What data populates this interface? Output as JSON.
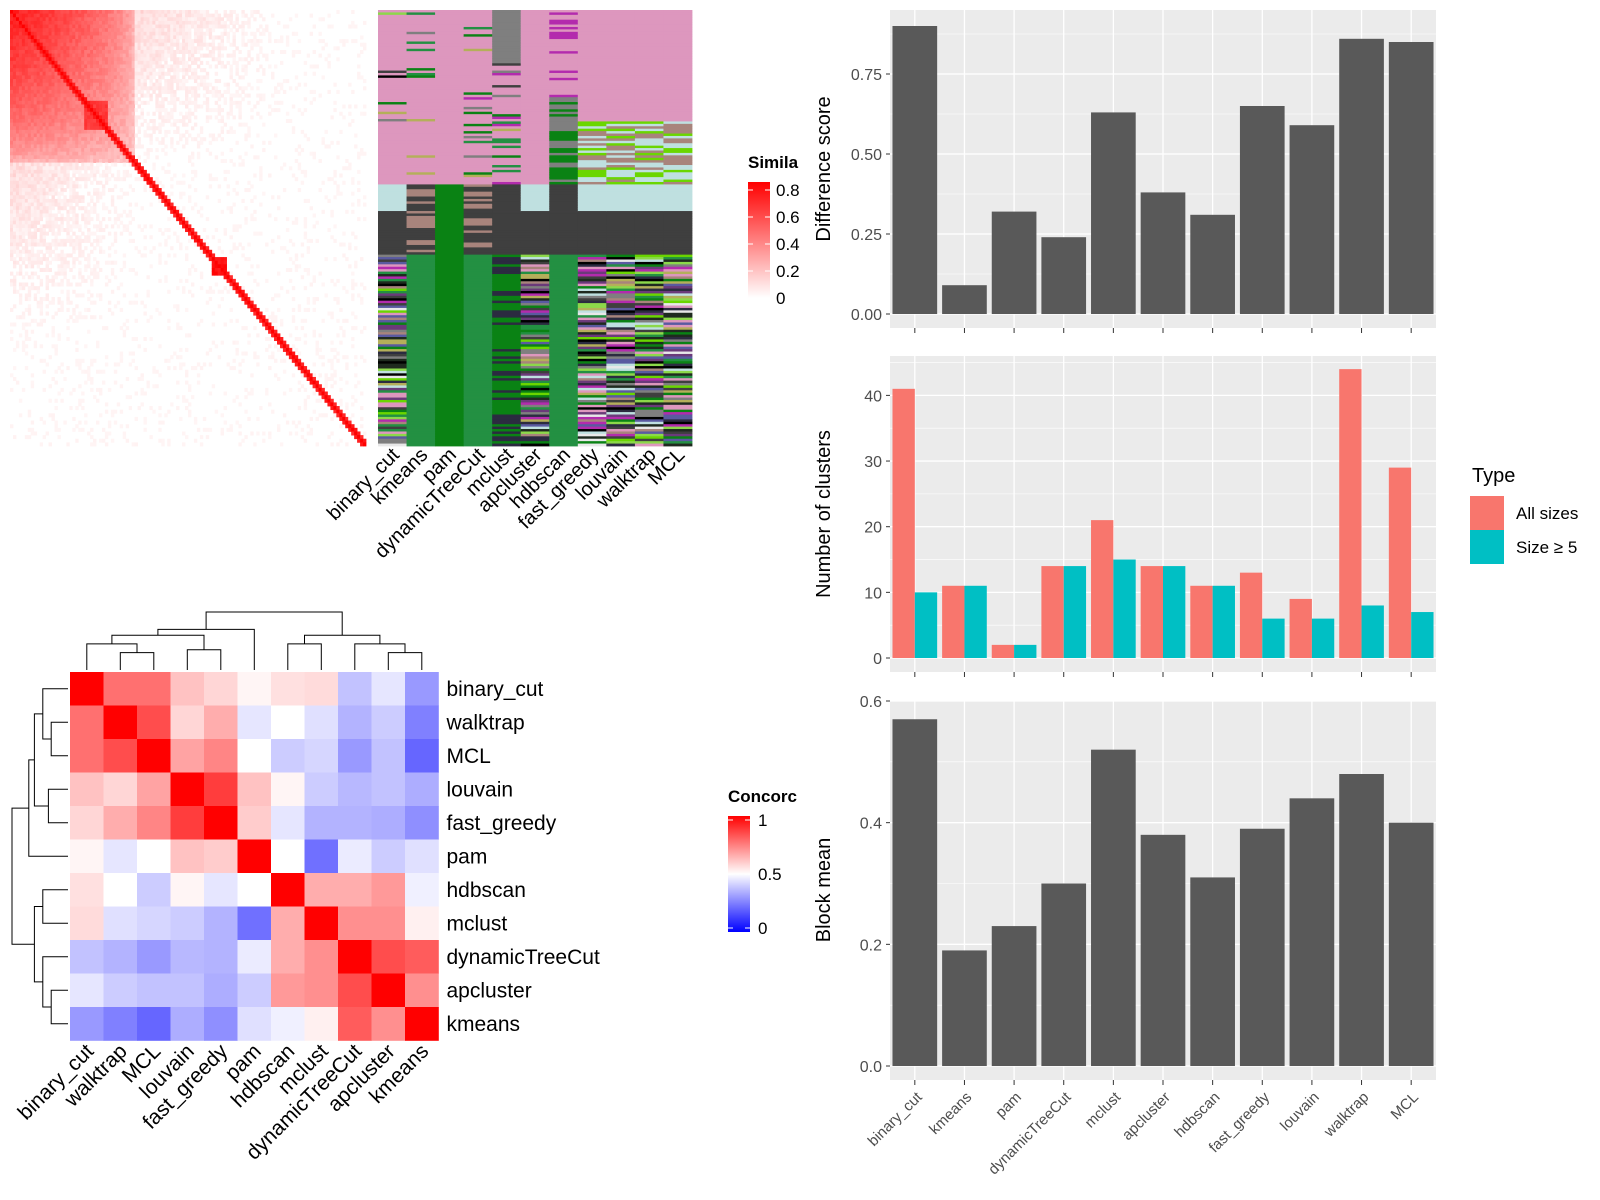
{
  "colors": {
    "panel_bg": "#ebebeb",
    "grid": "#ffffff",
    "bar": "#595959",
    "all_sizes": "#f8766d",
    "size_ge_5": "#00bfc4",
    "sim_high": "#ff0000",
    "sim_low": "#ffffff",
    "conc_high": "#ff0000",
    "conc_mid": "#ffffff",
    "conc_low": "#0000ff"
  },
  "similarity_legend": {
    "title": "Simila",
    "ticks": [
      "0.8",
      "0.6",
      "0.4",
      "0.2",
      "0"
    ]
  },
  "concordance_legend": {
    "title": "Concorc",
    "ticks": [
      "1",
      "0.5",
      "0"
    ]
  },
  "membership_columns": [
    "binary_cut",
    "kmeans",
    "pam",
    "dynamicTreeCut",
    "mclust",
    "apcluster",
    "hdbscan",
    "fast_greedy",
    "louvain",
    "walktrap",
    "MCL"
  ],
  "concordance_rows": [
    "binary_cut",
    "walktrap",
    "MCL",
    "louvain",
    "fast_greedy",
    "pam",
    "hdbscan",
    "mclust",
    "dynamicTreeCut",
    "apcluster",
    "kmeans"
  ],
  "concordance_matrix": [
    [
      1.0,
      0.78,
      0.78,
      0.62,
      0.58,
      0.52,
      0.56,
      0.57,
      0.38,
      0.45,
      0.3
    ],
    [
      0.78,
      1.0,
      0.85,
      0.58,
      0.66,
      0.45,
      0.5,
      0.44,
      0.35,
      0.4,
      0.25
    ],
    [
      0.78,
      0.85,
      1.0,
      0.68,
      0.74,
      0.5,
      0.4,
      0.42,
      0.3,
      0.38,
      0.2
    ],
    [
      0.62,
      0.58,
      0.68,
      1.0,
      0.88,
      0.62,
      0.52,
      0.4,
      0.36,
      0.38,
      0.34
    ],
    [
      0.58,
      0.66,
      0.74,
      0.88,
      1.0,
      0.6,
      0.45,
      0.35,
      0.35,
      0.34,
      0.28
    ],
    [
      0.52,
      0.45,
      0.5,
      0.62,
      0.6,
      1.0,
      0.5,
      0.22,
      0.46,
      0.4,
      0.44
    ],
    [
      0.56,
      0.5,
      0.4,
      0.52,
      0.45,
      0.5,
      1.0,
      0.66,
      0.66,
      0.7,
      0.47
    ],
    [
      0.57,
      0.44,
      0.42,
      0.4,
      0.35,
      0.22,
      0.66,
      1.0,
      0.72,
      0.72,
      0.53
    ],
    [
      0.38,
      0.35,
      0.3,
      0.36,
      0.35,
      0.46,
      0.66,
      0.72,
      1.0,
      0.85,
      0.82
    ],
    [
      0.45,
      0.4,
      0.38,
      0.38,
      0.34,
      0.4,
      0.7,
      0.72,
      0.85,
      1.0,
      0.72
    ],
    [
      0.3,
      0.25,
      0.2,
      0.34,
      0.28,
      0.44,
      0.47,
      0.53,
      0.82,
      0.72,
      1.0
    ]
  ],
  "chart_data": [
    {
      "type": "heatmap",
      "title": "",
      "legend_title": "Simila",
      "legend_ticks": [
        0,
        0.2,
        0.4,
        0.6,
        0.8
      ],
      "color_range": [
        0,
        0.8
      ]
    },
    {
      "type": "heatmap",
      "title": "",
      "columns": [
        "binary_cut",
        "kmeans",
        "pam",
        "dynamicTreeCut",
        "mclust",
        "apcluster",
        "hdbscan",
        "fast_greedy",
        "louvain",
        "walktrap",
        "MCL"
      ]
    },
    {
      "type": "heatmap",
      "title": "",
      "legend_title": "Concorc",
      "legend_ticks": [
        0,
        0.5,
        1
      ],
      "rows": [
        "binary_cut",
        "walktrap",
        "MCL",
        "louvain",
        "fast_greedy",
        "pam",
        "hdbscan",
        "mclust",
        "dynamicTreeCut",
        "apcluster",
        "kmeans"
      ],
      "columns": [
        "binary_cut",
        "walktrap",
        "MCL",
        "louvain",
        "fast_greedy",
        "pam",
        "hdbscan",
        "mclust",
        "dynamicTreeCut",
        "apcluster",
        "kmeans"
      ]
    },
    {
      "type": "bar",
      "categories": [
        "binary_cut",
        "kmeans",
        "pam",
        "dynamicTreeCut",
        "mclust",
        "apcluster",
        "hdbscan",
        "fast_greedy",
        "louvain",
        "walktrap",
        "MCL"
      ],
      "values": [
        0.9,
        0.09,
        0.32,
        0.24,
        0.63,
        0.38,
        0.31,
        0.65,
        0.59,
        0.86,
        0.85
      ],
      "ylabel": "Difference score",
      "xlabel": "",
      "ylim": [
        0,
        0.95
      ],
      "yticks": [
        "0.00",
        "0.25",
        "0.50",
        "0.75"
      ],
      "grid": true
    },
    {
      "type": "bar",
      "categories": [
        "binary_cut",
        "kmeans",
        "pam",
        "dynamicTreeCut",
        "mclust",
        "apcluster",
        "hdbscan",
        "fast_greedy",
        "louvain",
        "walktrap",
        "MCL"
      ],
      "series": [
        {
          "name": "All sizes",
          "values": [
            41,
            11,
            2,
            14,
            21,
            14,
            11,
            13,
            9,
            44,
            29
          ]
        },
        {
          "name": "Size ≥ 5",
          "values": [
            10,
            11,
            2,
            14,
            15,
            14,
            11,
            6,
            6,
            8,
            7
          ]
        }
      ],
      "ylabel": "Number of clusters",
      "xlabel": "",
      "ylim": [
        0,
        46
      ],
      "yticks": [
        "0",
        "10",
        "20",
        "30",
        "40"
      ],
      "legend_title": "Type",
      "legend_position": "right",
      "grid": true
    },
    {
      "type": "bar",
      "categories": [
        "binary_cut",
        "kmeans",
        "pam",
        "dynamicTreeCut",
        "mclust",
        "apcluster",
        "hdbscan",
        "fast_greedy",
        "louvain",
        "walktrap",
        "MCL"
      ],
      "values": [
        0.57,
        0.19,
        0.23,
        0.3,
        0.52,
        0.38,
        0.31,
        0.39,
        0.44,
        0.48,
        0.4
      ],
      "ylabel": "Block mean",
      "xlabel": "",
      "ylim": [
        0,
        0.6
      ],
      "yticks": [
        "0.0",
        "0.2",
        "0.4",
        "0.6"
      ],
      "grid": true
    }
  ]
}
